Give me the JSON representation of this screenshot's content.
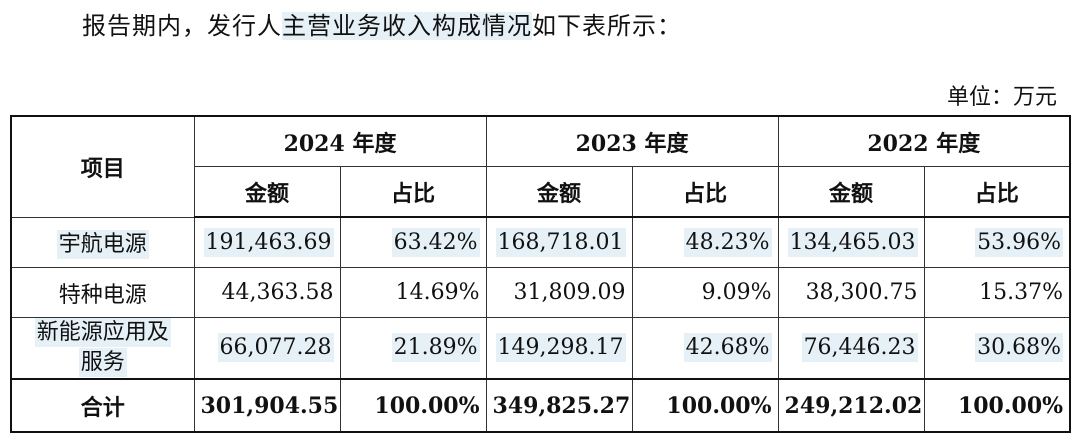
{
  "intro": {
    "before": "报告期内，发行人",
    "highlight": "主营业务收入构成情况",
    "after": "如下表所示："
  },
  "unit": "单位：万元",
  "table": {
    "header_item": "项目",
    "years": [
      "2024 年度",
      "2023 年度",
      "2022 年度"
    ],
    "sub_amount": "金额",
    "sub_ratio": "占比",
    "rows": [
      {
        "name": "宇航电源",
        "cells": [
          "191,463.69",
          "63.42%",
          "168,718.01",
          "48.23%",
          "134,465.03",
          "53.96%"
        ]
      },
      {
        "name": "特种电源",
        "cells": [
          "44,363.58",
          "14.69%",
          "31,809.09",
          "9.09%",
          "38,300.75",
          "15.37%"
        ]
      },
      {
        "name_line1": "新能源应用及",
        "name_line2": "服务",
        "cells": [
          "66,077.28",
          "21.89%",
          "149,298.17",
          "42.68%",
          "76,446.23",
          "30.68%"
        ]
      }
    ],
    "total": {
      "name": "合计",
      "cells": [
        "301,904.55",
        "100.00%",
        "349,825.27",
        "100.00%",
        "249,212.02",
        "100.00%"
      ]
    }
  }
}
